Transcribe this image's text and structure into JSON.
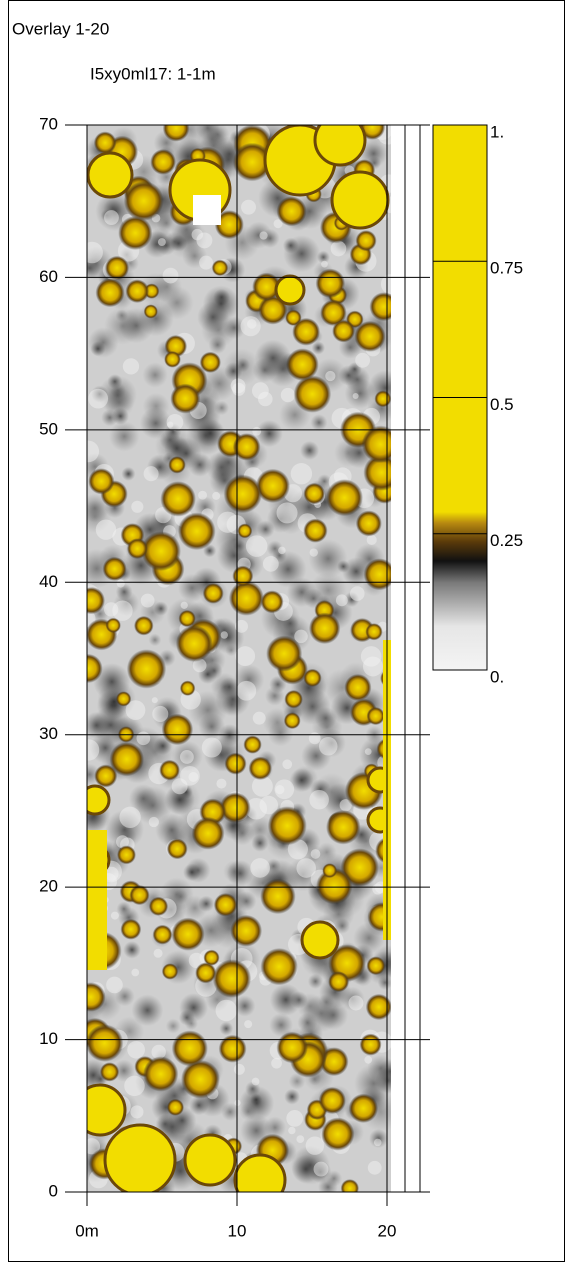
{
  "chart_data": {
    "type": "heatmap",
    "title": "Overlay 1-20",
    "subtitle": "I5xy0ml17: 1-1m",
    "xlim": [
      0,
      20
    ],
    "ylim": [
      0,
      70
    ],
    "xticks": [
      {
        "value": 0,
        "label": "0m"
      },
      10,
      20
    ],
    "yticks": [
      0,
      10,
      20,
      30,
      40,
      50,
      60,
      70
    ],
    "grid": true,
    "colorbar": {
      "lim": [
        0,
        1
      ],
      "ticks": [
        {
          "value": 0,
          "label": "0."
        },
        0.25,
        0.5,
        0.75,
        {
          "value": 1,
          "label": "1."
        }
      ]
    }
  }
}
